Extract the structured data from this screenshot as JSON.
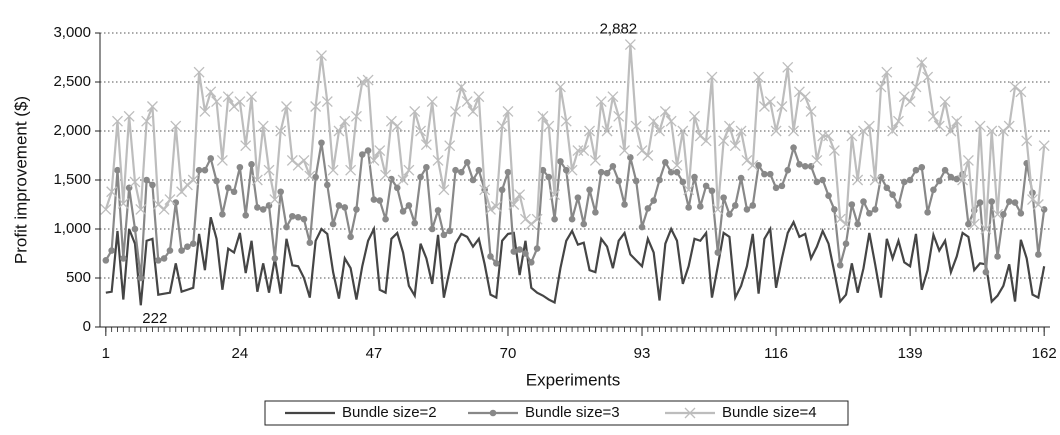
{
  "chart_data": {
    "type": "line",
    "y_label": "Profit improvement ($)",
    "x_label": "Experiments",
    "x": [
      1,
      2,
      3,
      4,
      5,
      6,
      7,
      8,
      9,
      10,
      11,
      12,
      13,
      14,
      15,
      16,
      17,
      18,
      19,
      20,
      21,
      22,
      23,
      24,
      25,
      26,
      27,
      28,
      29,
      30,
      31,
      32,
      33,
      34,
      35,
      36,
      37,
      38,
      39,
      40,
      41,
      42,
      43,
      44,
      45,
      46,
      47,
      48,
      49,
      50,
      51,
      52,
      53,
      54,
      55,
      56,
      57,
      58,
      59,
      60,
      61,
      62,
      63,
      64,
      65,
      66,
      67,
      68,
      69,
      70,
      71,
      72,
      73,
      74,
      75,
      76,
      77,
      78,
      79,
      80,
      81,
      82,
      83,
      84,
      85,
      86,
      87,
      88,
      89,
      90,
      91,
      92,
      93,
      94,
      95,
      96,
      97,
      98,
      99,
      100,
      101,
      102,
      103,
      104,
      105,
      106,
      107,
      108,
      109,
      110,
      111,
      112,
      113,
      114,
      115,
      116,
      117,
      118,
      119,
      120,
      121,
      122,
      123,
      124,
      125,
      126,
      127,
      128,
      129,
      130,
      131,
      132,
      133,
      134,
      135,
      136,
      137,
      138,
      139,
      140,
      141,
      142,
      143,
      144,
      145,
      146,
      147,
      148,
      149,
      150,
      151,
      152,
      153,
      154,
      155,
      156,
      157,
      158,
      159,
      160,
      161,
      162
    ],
    "series": [
      {
        "name": "Bundle size=2",
        "color": "#454545",
        "marker": "none",
        "values": [
          350,
          360,
          980,
          280,
          1000,
          850,
          222,
          880,
          900,
          330,
          340,
          350,
          650,
          360,
          380,
          400,
          950,
          580,
          1120,
          900,
          380,
          800,
          760,
          960,
          550,
          880,
          360,
          650,
          350,
          700,
          340,
          900,
          630,
          620,
          500,
          300,
          880,
          1000,
          950,
          560,
          290,
          700,
          600,
          280,
          620,
          880,
          1000,
          380,
          350,
          900,
          960,
          760,
          420,
          320,
          850,
          700,
          440,
          940,
          300,
          580,
          850,
          950,
          920,
          820,
          900,
          640,
          330,
          300,
          880,
          950,
          960,
          530,
          880,
          400,
          350,
          320,
          280,
          250,
          600,
          880,
          980,
          840,
          860,
          580,
          560,
          900,
          820,
          600,
          880,
          960,
          740,
          680,
          620,
          900,
          760,
          270,
          850,
          1000,
          880,
          440,
          620,
          900,
          880,
          960,
          300,
          620,
          960,
          920,
          300,
          420,
          620,
          950,
          340,
          900,
          1000,
          400,
          700,
          960,
          1070,
          920,
          950,
          700,
          820,
          980,
          850,
          560,
          260,
          330,
          650,
          350,
          600,
          960,
          640,
          300,
          900,
          700,
          880,
          660,
          620,
          950,
          380,
          580,
          940,
          780,
          880,
          560,
          720,
          960,
          920,
          580,
          650,
          640,
          260,
          320,
          420,
          640,
          260,
          890,
          700,
          330,
          300,
          620
        ]
      },
      {
        "name": "Bundle size=3",
        "color": "#888888",
        "marker": "circle",
        "values": [
          680,
          780,
          1600,
          700,
          1420,
          1000,
          500,
          1500,
          1450,
          680,
          700,
          780,
          1270,
          780,
          820,
          850,
          1600,
          1600,
          1720,
          1490,
          1150,
          1420,
          1380,
          1630,
          1140,
          1660,
          1220,
          1200,
          1240,
          700,
          1380,
          1020,
          1130,
          1120,
          1100,
          860,
          1530,
          1880,
          1450,
          1050,
          1240,
          1220,
          920,
          1200,
          1760,
          1800,
          1300,
          1290,
          1100,
          1510,
          1420,
          1180,
          1240,
          1060,
          1530,
          1630,
          1000,
          1190,
          940,
          980,
          1600,
          1580,
          1680,
          1500,
          1600,
          1400,
          720,
          650,
          1400,
          1580,
          770,
          790,
          750,
          660,
          800,
          1600,
          1530,
          1100,
          1690,
          1600,
          1100,
          1320,
          1050,
          1400,
          1170,
          1580,
          1570,
          1640,
          1490,
          1250,
          1730,
          1490,
          1020,
          1210,
          1290,
          1500,
          1680,
          1580,
          1580,
          1480,
          1220,
          1530,
          1230,
          1440,
          1390,
          760,
          1320,
          1150,
          1240,
          1520,
          1200,
          1240,
          1650,
          1560,
          1560,
          1420,
          1440,
          1600,
          1830,
          1660,
          1640,
          1640,
          1480,
          1500,
          1340,
          1200,
          630,
          850,
          1250,
          1050,
          1280,
          1160,
          1200,
          1530,
          1420,
          1350,
          1240,
          1480,
          1500,
          1600,
          1630,
          1170,
          1400,
          1490,
          1600,
          1530,
          1510,
          1560,
          1050,
          1190,
          1270,
          560,
          1280,
          720,
          1150,
          1280,
          1270,
          1160,
          1670,
          1370,
          740,
          1200
        ]
      },
      {
        "name": "Bundle size=4",
        "color": "#bdbdbd",
        "marker": "x",
        "values": [
          1200,
          1380,
          2100,
          1260,
          2150,
          1480,
          1200,
          2100,
          2250,
          1250,
          1200,
          1300,
          2050,
          1380,
          1450,
          1500,
          2600,
          2200,
          2400,
          2300,
          1700,
          2350,
          2250,
          2300,
          1850,
          2350,
          1500,
          2050,
          1600,
          1300,
          2000,
          2250,
          1700,
          1650,
          1700,
          1540,
          2250,
          2770,
          2300,
          1600,
          2000,
          2100,
          1600,
          2150,
          2500,
          2520,
          1700,
          1800,
          1550,
          2100,
          2050,
          1500,
          1600,
          2200,
          2000,
          1860,
          2300,
          1700,
          1400,
          1850,
          2200,
          2450,
          2300,
          2200,
          2350,
          1400,
          1200,
          1230,
          2050,
          2200,
          1250,
          1350,
          1100,
          1050,
          1100,
          2150,
          2050,
          1350,
          2450,
          2100,
          1600,
          1800,
          1800,
          2000,
          1700,
          2300,
          2000,
          2350,
          2150,
          1800,
          2882,
          2050,
          1800,
          1750,
          2100,
          2000,
          2200,
          2100,
          1650,
          2000,
          1400,
          2150,
          1950,
          1900,
          2550,
          1200,
          1900,
          2050,
          1850,
          2000,
          1700,
          1650,
          2550,
          2250,
          2300,
          2000,
          2250,
          2650,
          2000,
          2400,
          2350,
          2200,
          1700,
          1950,
          1950,
          1800,
          1100,
          1050,
          1950,
          1500,
          2000,
          2050,
          1500,
          2450,
          2600,
          2000,
          2100,
          2350,
          2300,
          2450,
          2700,
          2550,
          2150,
          2050,
          2300,
          2000,
          2100,
          1500,
          1700,
          1050,
          2050,
          1000,
          2000,
          1150,
          2000,
          2050,
          2450,
          2400,
          1900,
          1300,
          1250,
          1850
        ]
      }
    ],
    "annotations": [
      {
        "text": "2,882",
        "x": 91,
        "y": 2882
      },
      {
        "text": "222",
        "x": 7,
        "y": 222
      }
    ],
    "xlim": [
      0,
      163
    ],
    "xticks": [
      1,
      24,
      47,
      70,
      93,
      116,
      139,
      162
    ],
    "ylim": [
      0,
      3000
    ],
    "yticks": [
      0,
      500,
      {
        "value": 1000,
        "label": "1,000"
      },
      {
        "value": 1500,
        "label": "1,500"
      },
      {
        "value": 2000,
        "label": "2,000"
      },
      {
        "value": 2500,
        "label": "2,500"
      },
      {
        "value": 3000,
        "label": "3,000"
      }
    ],
    "grid": true,
    "legend": "bottom"
  }
}
